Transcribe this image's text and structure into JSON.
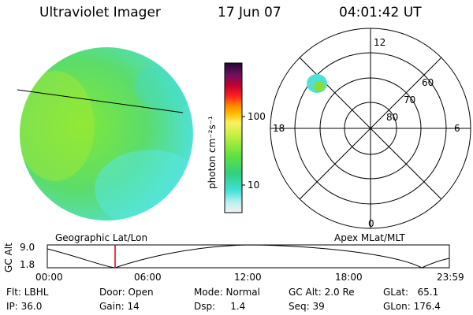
{
  "header": {
    "instrument": "Ultraviolet Imager",
    "date": "17 Jun 07",
    "time": "04:01:42 UT"
  },
  "colorbar": {
    "unit_label": "photon cm⁻²s⁻¹",
    "ticks": [
      "100",
      "10"
    ]
  },
  "polar_plot": {
    "mlt_labels": {
      "top": "12",
      "left": "18",
      "right": "6",
      "bottom": "0"
    },
    "lat_labels": [
      "60",
      "70",
      "80"
    ]
  },
  "panel_labels": {
    "left": "Geographic Lat/Lon",
    "right": "Apex MLat/MLT"
  },
  "orbit_plot": {
    "ylabel": "GC Alt",
    "y_ticks": [
      "9.0",
      "1.8"
    ],
    "x_ticks": [
      "00:00",
      "06:00",
      "12:00",
      "18:00",
      "23:59"
    ]
  },
  "info": {
    "flt": "Flt: LBHL",
    "ip": "IP: 36.0",
    "door": "Door: Open",
    "gain": "Gain: 14",
    "mode": "Mode: Normal",
    "dsp": "Dsp:     1.4",
    "gcalt": "GC Alt: 2.0 Re",
    "seq": "Seq: 39",
    "glat": "GLat:   65.1",
    "glon": "GLon: 176.4"
  },
  "colors": {
    "earth_green": "#6fe04a",
    "earth_cyan": "#4fe0d8",
    "marker_red": "#e00000"
  }
}
